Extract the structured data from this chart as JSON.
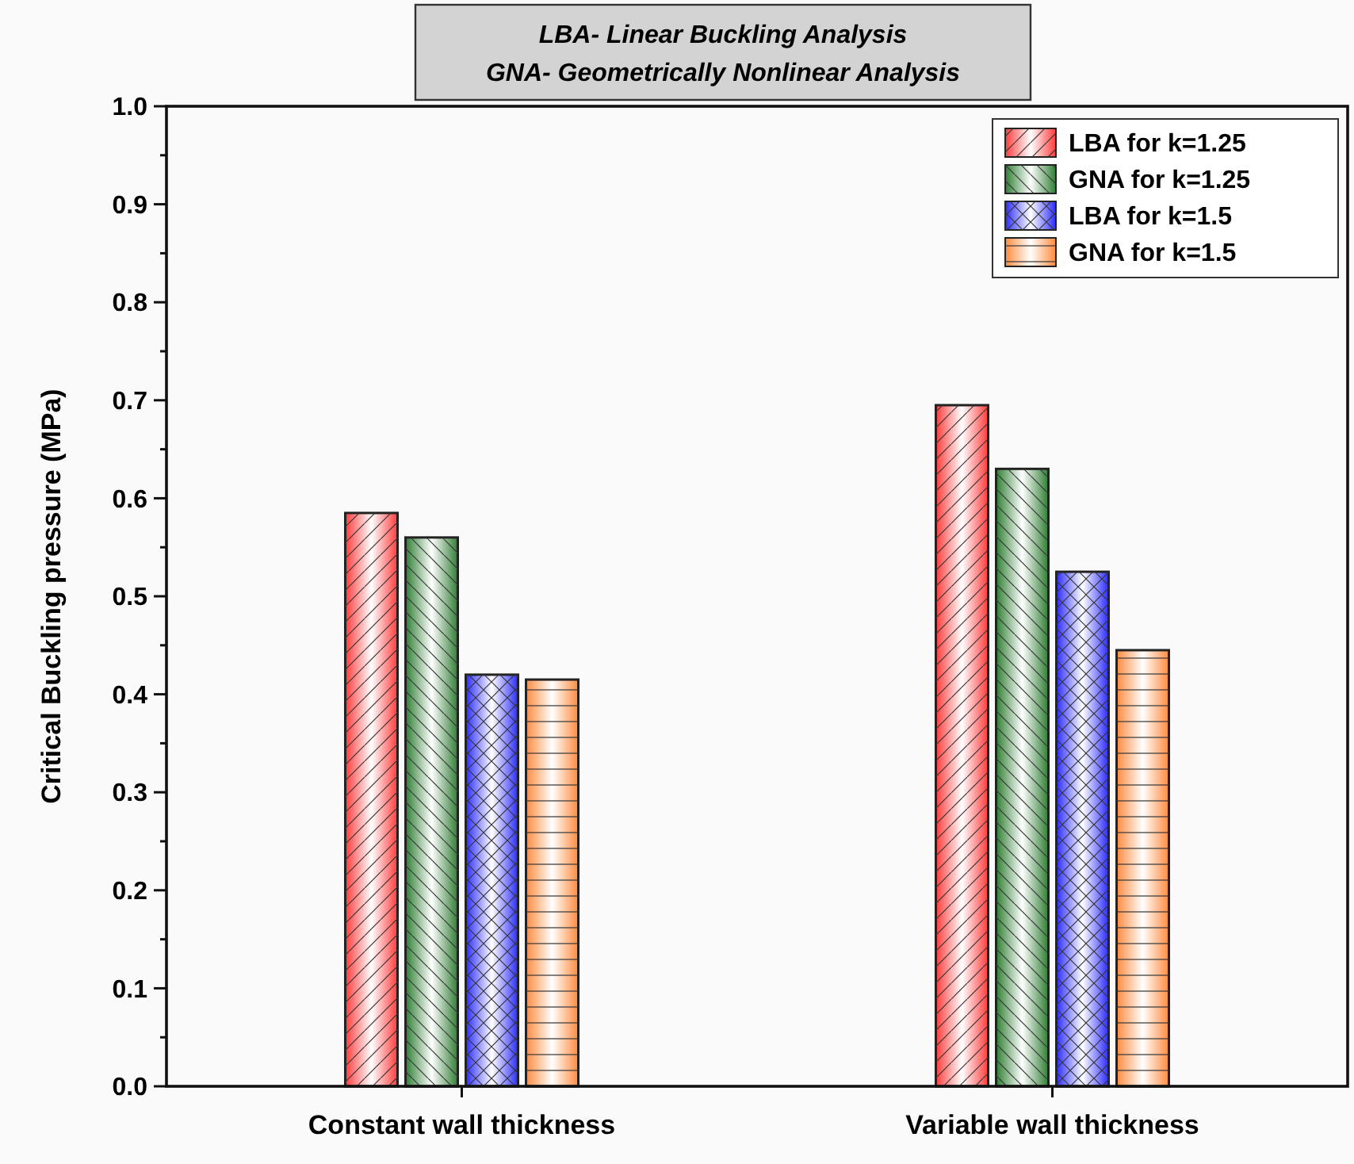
{
  "chart_data": {
    "type": "bar",
    "title": "LBA- Linear Buckling Analysis",
    "subtitle": "GNA- Geometrically Nonlinear Analysis",
    "ylabel": "Critical Buckling pressure (MPa)",
    "categories": [
      "Constant wall thickness",
      "Variable wall thickness"
    ],
    "series": [
      {
        "name": "LBA for k=1.25",
        "color": "#ff3b3b",
        "values": [
          0.585,
          0.695
        ]
      },
      {
        "name": "GNA for k=1.25",
        "color": "#2e7d32",
        "values": [
          0.56,
          0.63
        ]
      },
      {
        "name": "LBA for k=1.5",
        "color": "#2a2aff",
        "values": [
          0.42,
          0.525
        ]
      },
      {
        "name": "GNA for k=1.5",
        "color": "#ff8a3d",
        "values": [
          0.415,
          0.445
        ]
      }
    ],
    "ylim": [
      0,
      1
    ],
    "yticks": [
      {
        "value": 0,
        "label": "0.0"
      },
      {
        "value": 0.05,
        "label": null
      },
      0.1,
      {
        "value": 0.15,
        "label": null
      },
      0.2,
      {
        "value": 0.25,
        "label": null
      },
      0.3,
      {
        "value": 0.35,
        "label": null
      },
      0.4,
      {
        "value": 0.45,
        "label": null
      },
      0.5,
      {
        "value": 0.55,
        "label": null
      },
      0.6,
      {
        "value": 0.65,
        "label": null
      },
      0.7,
      {
        "value": 0.75,
        "label": null
      },
      0.8,
      {
        "value": 0.85,
        "label": null
      },
      0.9,
      {
        "value": 0.95,
        "label": null
      },
      {
        "value": 1,
        "label": "1.0"
      }
    ],
    "grid": false,
    "legend": "top right"
  }
}
